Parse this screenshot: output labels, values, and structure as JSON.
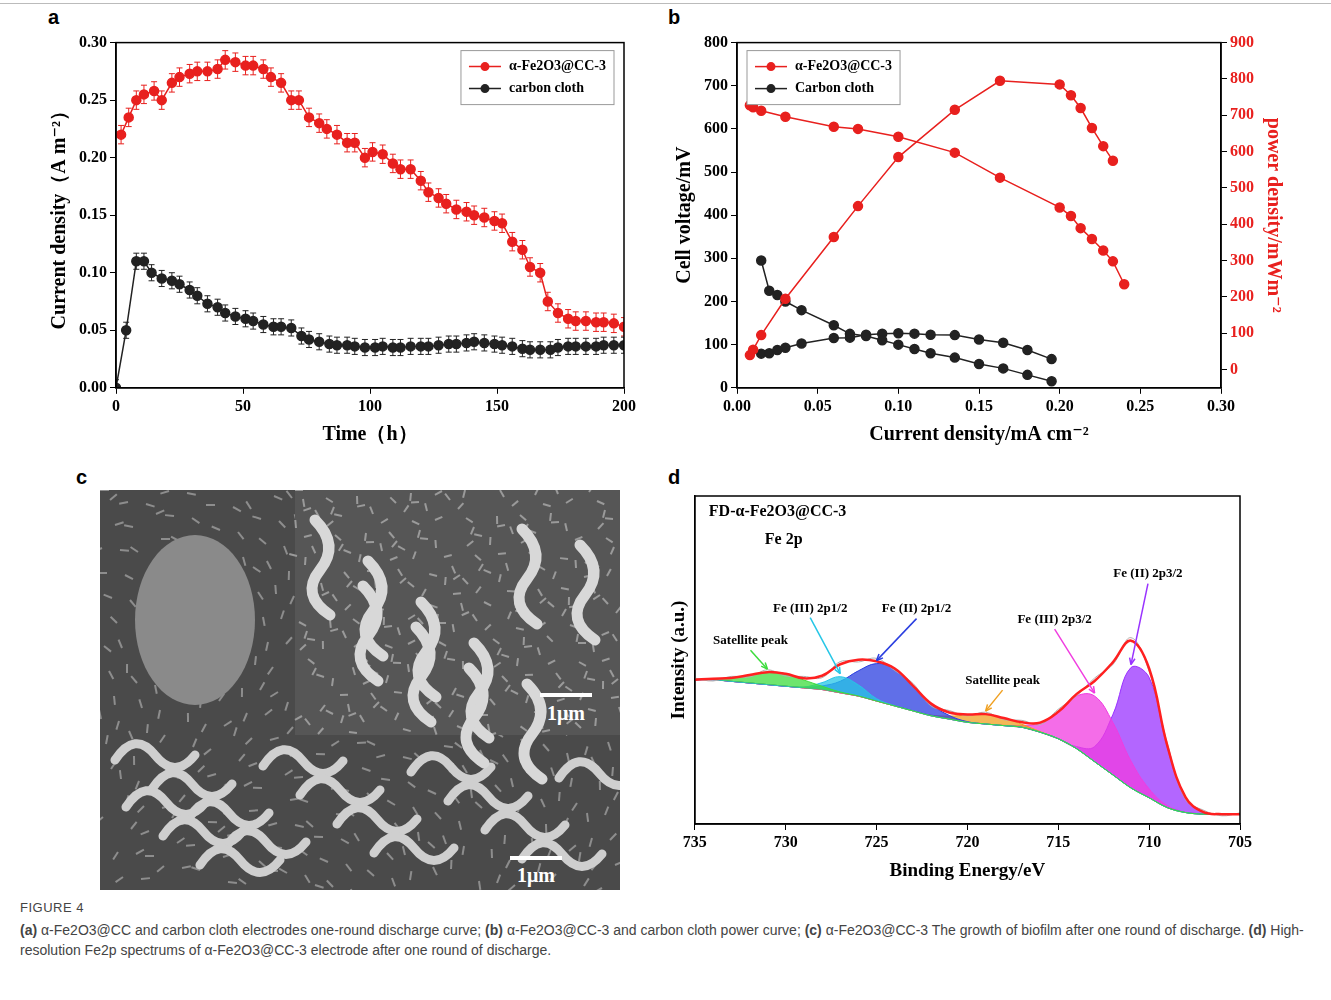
{
  "chart_data": [
    {
      "panel": "a",
      "type": "line",
      "x_label": "Time（h）",
      "y_label": "Current density（A m⁻²）",
      "xlim": [
        0,
        200
      ],
      "xticks": [
        0,
        50,
        100,
        150,
        200
      ],
      "ylim": [
        0,
        0.3
      ],
      "yticks": [
        {
          "value": 0,
          "label": "0.00"
        },
        0.05,
        {
          "value": 0.1,
          "label": "0.10"
        },
        0.15,
        {
          "value": 0.2,
          "label": "0.20"
        },
        0.25,
        {
          "value": 0.3,
          "label": "0.30"
        }
      ],
      "grid": false,
      "legend": "upper right",
      "series": [
        {
          "name": "α-Fe2O3@CC-3",
          "color": "#e8201e",
          "marker": "circle",
          "error": 0.008,
          "x": [
            2,
            5,
            8,
            11,
            15,
            18,
            22,
            25,
            29,
            32,
            36,
            40,
            43,
            47,
            51,
            54,
            58,
            61,
            65,
            69,
            72,
            76,
            80,
            83,
            87,
            91,
            94,
            98,
            101,
            105,
            109,
            112,
            116,
            120,
            123,
            127,
            130,
            134,
            138,
            141,
            145,
            149,
            152,
            156,
            160,
            163,
            167,
            170,
            174,
            178,
            181,
            185,
            189,
            192,
            196,
            200
          ],
          "values": [
            0.22,
            0.235,
            0.25,
            0.255,
            0.258,
            0.25,
            0.265,
            0.27,
            0.273,
            0.275,
            0.275,
            0.277,
            0.285,
            0.283,
            0.28,
            0.28,
            0.277,
            0.27,
            0.265,
            0.25,
            0.25,
            0.235,
            0.23,
            0.225,
            0.22,
            0.213,
            0.213,
            0.2,
            0.205,
            0.203,
            0.195,
            0.19,
            0.19,
            0.18,
            0.17,
            0.165,
            0.16,
            0.155,
            0.153,
            0.15,
            0.148,
            0.145,
            0.143,
            0.127,
            0.12,
            0.105,
            0.1,
            0.075,
            0.065,
            0.06,
            0.058,
            0.058,
            0.057,
            0.057,
            0.056,
            0.053
          ]
        },
        {
          "name": "carbon cloth",
          "color": "#222222",
          "marker": "circle",
          "error": 0.007,
          "x": [
            0,
            4,
            8,
            11,
            14,
            18,
            22,
            25,
            29,
            32,
            36,
            40,
            43,
            47,
            51,
            54,
            58,
            62,
            65,
            69,
            73,
            76,
            80,
            84,
            87,
            91,
            94,
            98,
            102,
            105,
            109,
            112,
            116,
            120,
            123,
            127,
            131,
            134,
            138,
            141,
            145,
            149,
            152,
            156,
            160,
            163,
            167,
            171,
            174,
            178,
            181,
            185,
            189,
            192,
            196,
            200
          ],
          "values": [
            0,
            0.05,
            0.11,
            0.11,
            0.1,
            0.095,
            0.093,
            0.09,
            0.085,
            0.08,
            0.073,
            0.07,
            0.065,
            0.062,
            0.06,
            0.058,
            0.055,
            0.053,
            0.053,
            0.052,
            0.045,
            0.042,
            0.04,
            0.038,
            0.037,
            0.037,
            0.036,
            0.035,
            0.035,
            0.036,
            0.035,
            0.035,
            0.036,
            0.036,
            0.036,
            0.037,
            0.038,
            0.038,
            0.039,
            0.04,
            0.039,
            0.038,
            0.037,
            0.036,
            0.034,
            0.033,
            0.033,
            0.033,
            0.035,
            0.036,
            0.036,
            0.036,
            0.036,
            0.037,
            0.037,
            0.037
          ]
        }
      ]
    },
    {
      "panel": "b",
      "type": "line",
      "x_label": "Current density/mA cm⁻²",
      "y_label": "Cell voltage/mV",
      "y2_label": "power density/mWm⁻²",
      "xlim": [
        0,
        0.3
      ],
      "xticks": [
        {
          "value": 0,
          "label": "0.00"
        },
        0.05,
        {
          "value": 0.1,
          "label": "0.10"
        },
        0.15,
        {
          "value": 0.2,
          "label": "0.20"
        },
        0.25,
        {
          "value": 0.3,
          "label": "0.30"
        }
      ],
      "ylim": [
        0,
        800
      ],
      "yticks": [
        0,
        100,
        200,
        300,
        400,
        500,
        600,
        700,
        800
      ],
      "y2lim": [
        -50,
        900
      ],
      "y2ticks": [
        0,
        100,
        200,
        300,
        400,
        500,
        600,
        700,
        800,
        900
      ],
      "grid": false,
      "legend": "upper left",
      "series": [
        {
          "name": "α-Fe2O3@CC-3",
          "color": "#e8201e",
          "marker": "circle",
          "axis": "y",
          "x": [
            0.008,
            0.01,
            0.015,
            0.03,
            0.06,
            0.075,
            0.1,
            0.135,
            0.163,
            0.2,
            0.207,
            0.213,
            0.22,
            0.227,
            0.233,
            0.24
          ],
          "values": [
            655,
            650,
            642,
            628,
            605,
            600,
            582,
            545,
            487,
            418,
            398,
            370,
            345,
            318,
            293,
            240
          ]
        },
        {
          "name": "α-Fe2O3@CC-3",
          "color": "#e8201e",
          "marker": "circle",
          "axis": "y2",
          "x": [
            0.008,
            0.01,
            0.015,
            0.03,
            0.06,
            0.075,
            0.1,
            0.135,
            0.163,
            0.2,
            0.207,
            0.213,
            0.22,
            0.227,
            0.233
          ],
          "values": [
            40,
            55,
            95,
            195,
            365,
            450,
            585,
            715,
            795,
            785,
            755,
            720,
            665,
            615,
            575
          ]
        },
        {
          "name": "Carbon cloth",
          "color": "#222222",
          "marker": "circle",
          "axis": "y",
          "x": [
            0.015,
            0.02,
            0.025,
            0.03,
            0.04,
            0.06,
            0.07,
            0.08,
            0.09,
            0.1,
            0.11,
            0.12,
            0.135,
            0.15,
            0.165,
            0.18,
            0.195
          ],
          "values": [
            295,
            225,
            215,
            200,
            180,
            145,
            125,
            120,
            110,
            100,
            90,
            80,
            70,
            55,
            45,
            30,
            15
          ]
        },
        {
          "name": "Carbon cloth",
          "color": "#222222",
          "marker": "circle",
          "axis": "y2",
          "x": [
            0.015,
            0.02,
            0.025,
            0.03,
            0.04,
            0.06,
            0.07,
            0.08,
            0.09,
            0.1,
            0.11,
            0.12,
            0.135,
            0.15,
            0.165,
            0.18,
            0.195
          ],
          "values": [
            44,
            45,
            54,
            60,
            72,
            87,
            88,
            96,
            99,
            100,
            99,
            96,
            95,
            83,
            74,
            54,
            29
          ]
        }
      ]
    },
    {
      "panel": "d",
      "type": "line",
      "title": "FD-α-Fe2O3@CC-3",
      "subtitle": "Fe 2p",
      "x_label": "Binding Energy/eV",
      "y_label": "Intensity (a.u.)",
      "xlim": [
        735,
        705
      ],
      "xticks": [
        735,
        730,
        725,
        720,
        715,
        710,
        705
      ],
      "ylim": [
        0,
        100
      ],
      "tick_labels": "x",
      "grid": false,
      "x": [
        735,
        734,
        733,
        732,
        731,
        730,
        729,
        728,
        727,
        726,
        725,
        724,
        723,
        722,
        721,
        720,
        719,
        718,
        717,
        716,
        715,
        714,
        713,
        712,
        711,
        710,
        709,
        708,
        707,
        706,
        705
      ],
      "background": [
        44,
        44,
        43.5,
        43,
        42.5,
        42,
        41.5,
        41,
        40,
        39,
        37.5,
        36,
        34.5,
        33,
        32,
        31,
        30.5,
        30,
        29.5,
        28,
        26,
        23,
        19,
        15,
        11,
        8,
        5,
        3.5,
        3,
        3,
        3
      ],
      "series": [
        {
          "type": "line",
          "color": "#b0b0b0",
          "values": [
            44.5,
            43.6,
            45.0,
            44.8,
            47.0,
            45.1,
            45.0,
            44.6,
            49.5,
            49.4,
            50.5,
            46.8,
            42.9,
            36.0,
            34.6,
            33.0,
            34.1,
            31.8,
            31.6,
            30.3,
            35.0,
            39.0,
            44.5,
            48.6,
            56.8,
            46.5,
            24.6,
            7.5,
            4.2,
            2.5,
            3.4
          ]
        },
        {
          "type": "area",
          "name": "Satellite peak",
          "color": "#3ddc3d",
          "values": [
            0.04,
            0.26,
            1,
            2.4,
            3.8,
            3.8,
            2.4,
            1,
            0.26,
            0.04,
            0,
            0,
            0,
            0,
            0,
            0,
            0,
            0,
            0,
            0,
            0,
            0,
            0,
            0,
            0,
            0,
            0,
            0,
            0,
            0,
            0
          ]
        },
        {
          "type": "area",
          "name": "Fe (III) 2p1/2",
          "color": "#26c6e6",
          "values": [
            0,
            0,
            0,
            0,
            0,
            0,
            0.25,
            2.1,
            4.9,
            3.4,
            0.7,
            0.04,
            0,
            0,
            0,
            0,
            0,
            0,
            0,
            0,
            0,
            0,
            0,
            0,
            0,
            0,
            0,
            0,
            0,
            0,
            0
          ]
        },
        {
          "type": "area",
          "name": "Fe (II) 2p1/2",
          "color": "#2b3fe0",
          "values": [
            0,
            0,
            0,
            0,
            0,
            0,
            0.2,
            1.1,
            3.5,
            7.7,
            11.4,
            11.4,
            7.7,
            3.5,
            1.1,
            0.2,
            0,
            0,
            0,
            0,
            0,
            0,
            0,
            0,
            0,
            0,
            0,
            0,
            0,
            0,
            0
          ]
        },
        {
          "type": "area",
          "name": "Satellite peak",
          "color": "#f0a020",
          "values": [
            0,
            0,
            0,
            0,
            0,
            0,
            0,
            0,
            0,
            0,
            0,
            0,
            0,
            0.2,
            0.9,
            2.2,
            3,
            2.2,
            0.9,
            0.2,
            0,
            0,
            0,
            0,
            0,
            0,
            0,
            0,
            0,
            0,
            0
          ]
        },
        {
          "type": "area",
          "name": "Fe (III) 2p3/2",
          "color": "#f03ce0",
          "values": [
            0,
            0,
            0,
            0,
            0,
            0,
            0,
            0,
            0,
            0,
            0,
            0,
            0,
            0,
            0,
            0,
            0,
            0.1,
            0.6,
            2.7,
            8.2,
            16,
            20,
            16,
            8.2,
            2.7,
            0.6,
            0.1,
            0,
            0,
            0
          ]
        },
        {
          "type": "area",
          "name": "Fe (II) 2p3/2",
          "color": "#9933ff",
          "values": [
            0,
            0,
            0,
            0,
            0,
            0,
            0,
            0,
            0,
            0,
            0,
            0,
            0,
            0,
            0,
            0,
            0,
            0,
            0,
            0,
            0,
            0.6,
            4.6,
            18.3,
            36.7,
            36.7,
            18.3,
            4.6,
            0.6,
            0,
            0
          ]
        },
        {
          "type": "line",
          "color": "#ff2020",
          "values": [
            44.0,
            44.3,
            44.5,
            45.4,
            46.3,
            45.8,
            44.4,
            45.2,
            48.7,
            50.1,
            49.6,
            47.4,
            42.2,
            36.7,
            34.0,
            33.4,
            33.5,
            32.3,
            31.0,
            30.9,
            34.2,
            39.6,
            43.6,
            49.3,
            55.9,
            47.4,
            23.9,
            8.2,
            3.6,
            3,
            3
          ]
        }
      ]
    }
  ],
  "image_panel": {
    "label": "c",
    "type": "image",
    "scale_bars": [
      "1μm",
      "1μm"
    ]
  },
  "caption": {
    "figure_label": "FIGURE 4",
    "parts": [
      {
        "label": "(a)",
        "text": "α-Fe2O3@CC and carbon cloth electrodes one-round discharge curve;"
      },
      {
        "label": "(b)",
        "text": "α-Fe2O3@CC-3 and carbon cloth power curve;"
      },
      {
        "label": "(c)",
        "text": "α-Fe2O3@CC-3 The growth of biofilm after one round of discharge."
      },
      {
        "label": "(d)",
        "text": "High-resolution Fe2p spectrums of α-Fe2O3@CC-3 electrode after one round of discharge."
      }
    ]
  }
}
